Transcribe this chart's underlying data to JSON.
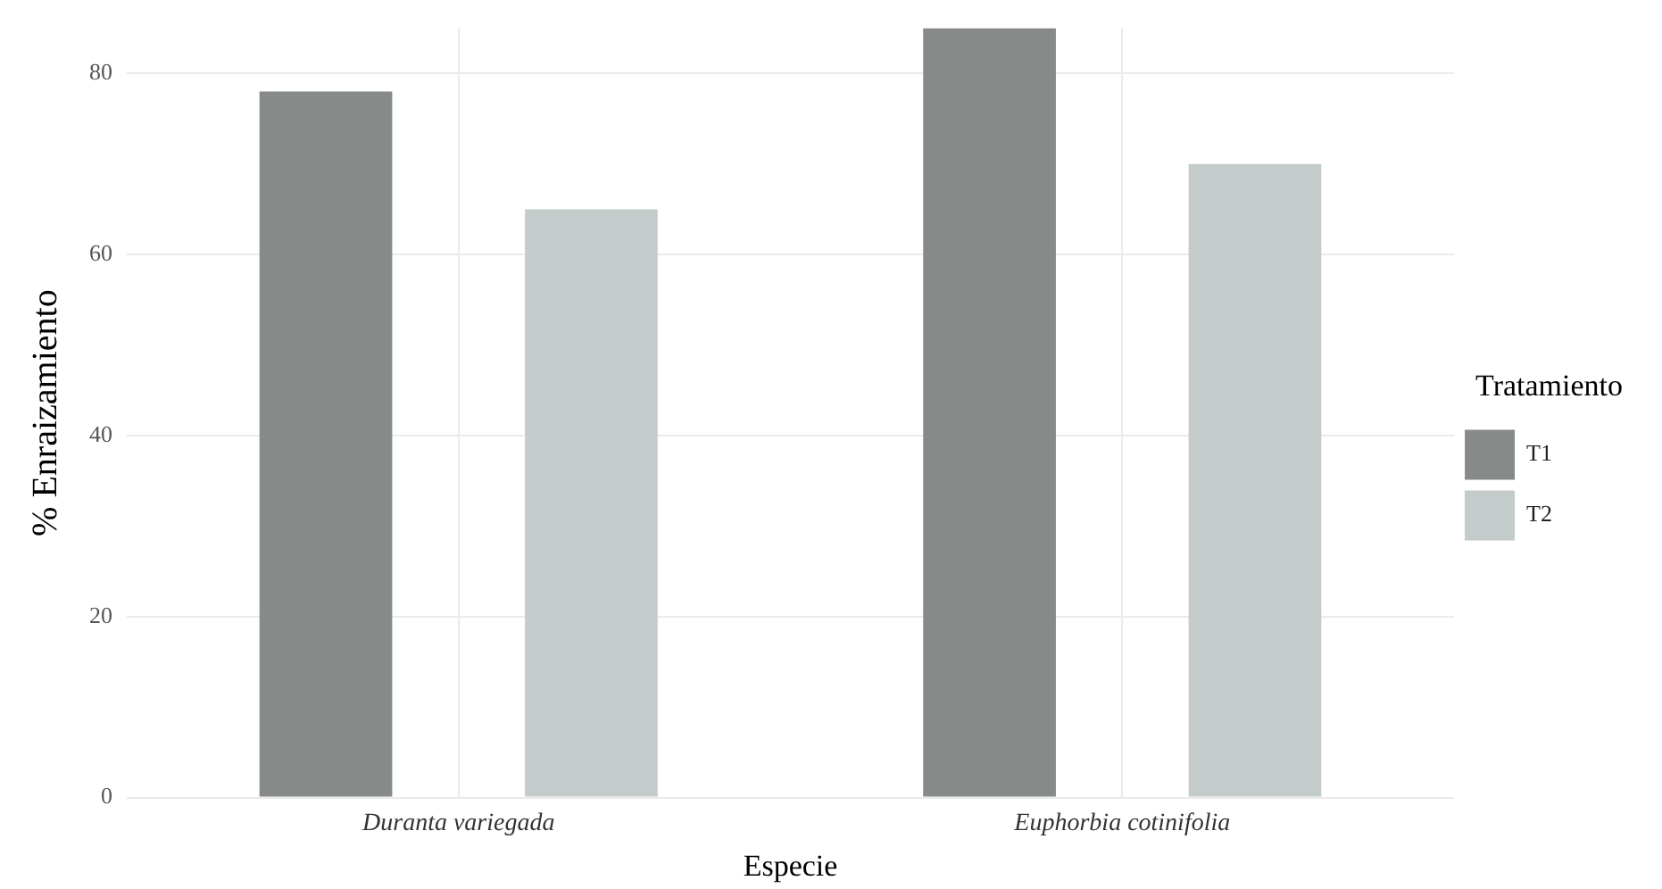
{
  "chart_data": {
    "type": "bar",
    "xlabel": "Especie",
    "ylabel": "% Enraizamiento",
    "legend_title": "Tratamiento",
    "categories": [
      "Duranta variegada",
      "Euphorbia cotinifolia"
    ],
    "series": [
      {
        "name": "T1",
        "color": "#868b8a",
        "values": [
          78,
          85
        ]
      },
      {
        "name": "T2",
        "color": "#c3cbcb",
        "values": [
          65,
          70
        ]
      }
    ],
    "ylim": [
      0,
      85
    ],
    "yticks": [
      0,
      20,
      40,
      60,
      80
    ],
    "grid": true,
    "legend": "right"
  }
}
